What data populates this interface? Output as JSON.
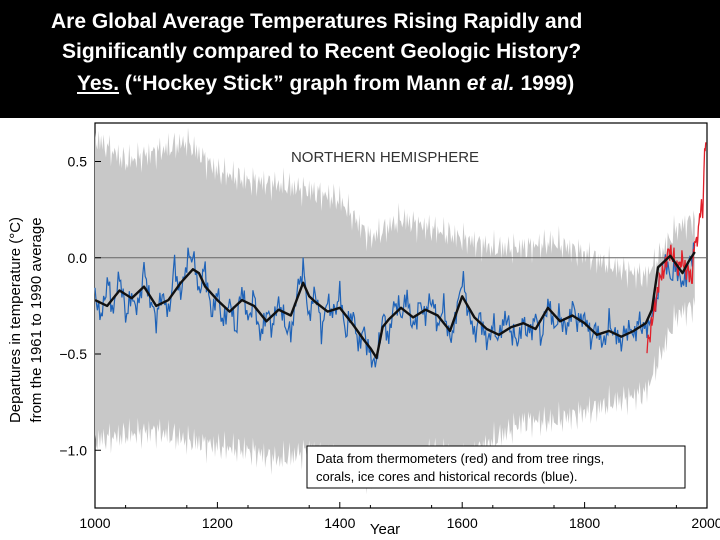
{
  "slide": {
    "title_line1": "Are Global Average Temperatures Rising Rapidly and",
    "title_line2": "Significantly compared to Recent Geologic History?",
    "title_line3_a": "Yes.",
    "title_line3_b": " (“Hockey Stick” graph from Mann ",
    "title_line3_c": "et al.",
    "title_line3_d": " 1999)"
  },
  "colors": {
    "background": "#000000",
    "title_text": "#ffffff",
    "uncertainty": "#c8c8c8",
    "proxy": "#1f63b8",
    "thermometer": "#e0202a",
    "smoothed": "#111111"
  },
  "chart_data": {
    "type": "line",
    "title": "NORTHERN HEMISPHERE",
    "xlabel": "Year",
    "ylabel_line1": "Departures in temperature (°C)",
    "ylabel_line2": "from the 1961 to 1990 average",
    "xlim": [
      1000,
      2000
    ],
    "ylim": [
      -1.3,
      0.7
    ],
    "x_ticks": [
      1000,
      1200,
      1400,
      1600,
      1800,
      2000
    ],
    "y_ticks": [
      0.5,
      0.0,
      -0.5,
      -1.0
    ],
    "y_tick_labels": [
      "0.5",
      "0.0",
      "−0.5",
      "−1.0"
    ],
    "reference_line": 0.0,
    "legend_line1": "Data from thermometers (red) and from tree rings,",
    "legend_line2": "corals, ice cores and historical records (blue).",
    "legend_position": "bottom-right",
    "series": [
      {
        "role": "smoothed",
        "x": [
          1000,
          1020,
          1040,
          1060,
          1080,
          1100,
          1120,
          1140,
          1160,
          1170,
          1180,
          1200,
          1220,
          1240,
          1260,
          1280,
          1300,
          1320,
          1340,
          1350,
          1360,
          1380,
          1400,
          1420,
          1440,
          1450,
          1460,
          1470,
          1480,
          1500,
          1520,
          1540,
          1560,
          1580,
          1600,
          1620,
          1640,
          1660,
          1680,
          1700,
          1720,
          1740,
          1760,
          1780,
          1800,
          1820,
          1840,
          1860,
          1880,
          1900,
          1910,
          1920,
          1940,
          1960,
          1970,
          1980
        ],
        "y": [
          -0.22,
          -0.25,
          -0.17,
          -0.21,
          -0.15,
          -0.25,
          -0.22,
          -0.13,
          -0.06,
          -0.08,
          -0.15,
          -0.22,
          -0.28,
          -0.22,
          -0.25,
          -0.33,
          -0.27,
          -0.3,
          -0.13,
          -0.2,
          -0.23,
          -0.28,
          -0.26,
          -0.34,
          -0.43,
          -0.47,
          -0.52,
          -0.36,
          -0.32,
          -0.26,
          -0.31,
          -0.27,
          -0.3,
          -0.38,
          -0.2,
          -0.31,
          -0.37,
          -0.4,
          -0.36,
          -0.34,
          -0.37,
          -0.26,
          -0.33,
          -0.3,
          -0.34,
          -0.4,
          -0.38,
          -0.41,
          -0.38,
          -0.34,
          -0.27,
          -0.05,
          0.01,
          -0.08,
          -0.02,
          0.03
        ]
      },
      {
        "role": "proxy",
        "x": [
          1000,
          1010,
          1020,
          1030,
          1040,
          1050,
          1060,
          1070,
          1080,
          1090,
          1100,
          1110,
          1120,
          1130,
          1140,
          1150,
          1160,
          1170,
          1180,
          1190,
          1200,
          1210,
          1220,
          1230,
          1240,
          1250,
          1260,
          1270,
          1280,
          1290,
          1300,
          1310,
          1320,
          1330,
          1340,
          1350,
          1360,
          1370,
          1380,
          1390,
          1400,
          1410,
          1420,
          1430,
          1440,
          1450,
          1460,
          1470,
          1480,
          1490,
          1500,
          1510,
          1520,
          1530,
          1540,
          1550,
          1560,
          1570,
          1580,
          1590,
          1600,
          1610,
          1620,
          1630,
          1640,
          1650,
          1660,
          1670,
          1680,
          1690,
          1700,
          1710,
          1720,
          1730,
          1740,
          1750,
          1760,
          1770,
          1780,
          1790,
          1800,
          1810,
          1820,
          1830,
          1840,
          1850,
          1860,
          1870,
          1880,
          1890,
          1900,
          1910,
          1920,
          1930,
          1940,
          1950,
          1960,
          1970,
          1980
        ],
        "y": [
          -0.18,
          -0.32,
          -0.12,
          -0.28,
          -0.08,
          -0.3,
          -0.2,
          -0.27,
          -0.06,
          -0.22,
          -0.32,
          -0.18,
          -0.3,
          -0.04,
          -0.2,
          -0.02,
          0.02,
          -0.18,
          -0.05,
          -0.3,
          -0.18,
          -0.35,
          -0.22,
          -0.38,
          -0.15,
          -0.33,
          -0.2,
          -0.42,
          -0.28,
          -0.36,
          -0.22,
          -0.34,
          -0.4,
          -0.18,
          -0.05,
          -0.32,
          -0.16,
          -0.38,
          -0.22,
          -0.3,
          -0.18,
          -0.4,
          -0.27,
          -0.45,
          -0.38,
          -0.52,
          -0.55,
          -0.3,
          -0.42,
          -0.22,
          -0.3,
          -0.2,
          -0.38,
          -0.24,
          -0.3,
          -0.2,
          -0.36,
          -0.25,
          -0.44,
          -0.3,
          -0.1,
          -0.28,
          -0.4,
          -0.3,
          -0.45,
          -0.35,
          -0.42,
          -0.3,
          -0.38,
          -0.44,
          -0.33,
          -0.4,
          -0.3,
          -0.42,
          -0.22,
          -0.36,
          -0.3,
          -0.38,
          -0.25,
          -0.34,
          -0.3,
          -0.42,
          -0.36,
          -0.46,
          -0.34,
          -0.4,
          -0.44,
          -0.36,
          -0.4,
          -0.33,
          -0.38,
          -0.3,
          -0.18,
          0.0,
          -0.1,
          -0.05,
          -0.15,
          -0.04,
          0.06
        ]
      },
      {
        "role": "thermometer",
        "x": [
          1902,
          1910,
          1920,
          1930,
          1940,
          1950,
          1960,
          1970,
          1975,
          1980,
          1983,
          1987,
          1990,
          1993,
          1995,
          1998
        ],
        "y": [
          -0.45,
          -0.35,
          -0.15,
          -0.05,
          0.05,
          -0.05,
          -0.02,
          -0.08,
          -0.12,
          0.1,
          0.05,
          0.18,
          0.3,
          0.2,
          0.45,
          0.6
        ]
      }
    ],
    "uncertainty_band": {
      "x": [
        1000,
        1050,
        1100,
        1150,
        1200,
        1250,
        1300,
        1350,
        1400,
        1450,
        1500,
        1550,
        1600,
        1650,
        1700,
        1750,
        1800,
        1850,
        1900,
        1950,
        1980
      ],
      "upper": [
        0.62,
        0.5,
        0.55,
        0.6,
        0.45,
        0.4,
        0.38,
        0.35,
        0.3,
        0.1,
        0.2,
        0.15,
        0.1,
        0.05,
        0.05,
        0.08,
        0.02,
        -0.05,
        -0.1,
        0.15,
        0.2
      ],
      "lower": [
        -0.95,
        -0.92,
        -0.9,
        -0.95,
        -0.98,
        -1.0,
        -1.05,
        -1.0,
        -1.05,
        -1.15,
        -1.1,
        -1.0,
        -1.05,
        -0.95,
        -0.85,
        -0.85,
        -0.8,
        -0.75,
        -0.7,
        -0.3,
        -0.25
      ]
    }
  }
}
